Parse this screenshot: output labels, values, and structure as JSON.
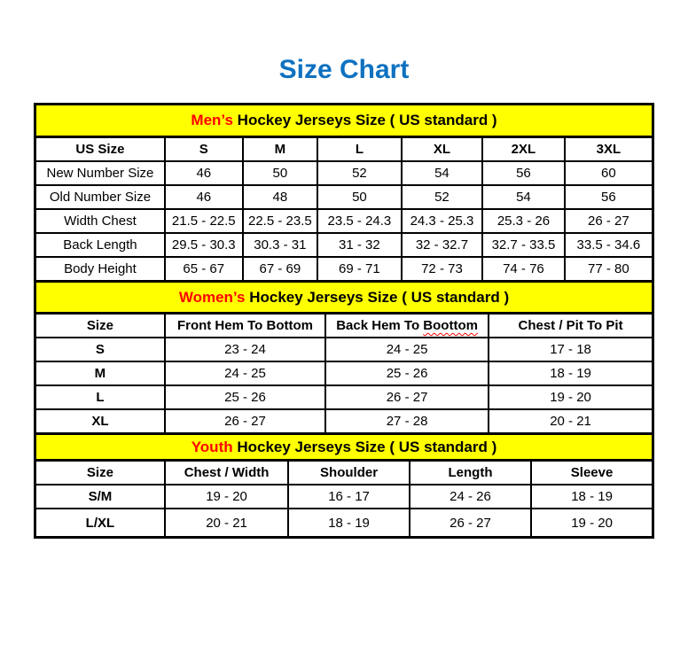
{
  "title": "Size Chart",
  "colors": {
    "title_blue": "#0E71C0",
    "band_yellow": "#FFFF00",
    "accent_red": "#FF0000",
    "border_black": "#000000",
    "background": "#FFFFFF"
  },
  "chart_data": [
    {
      "type": "table",
      "id": "mens",
      "caption": {
        "accent": "Men’s",
        "rest": " Hockey Jerseys Size ( US standard )"
      },
      "columns": [
        "US Size",
        "S",
        "M",
        "L",
        "XL",
        "2XL",
        "3XL"
      ],
      "row_label_bold": false,
      "rows": [
        [
          "New Number Size",
          "46",
          "50",
          "52",
          "54",
          "56",
          "60"
        ],
        [
          "Old Number Size",
          "46",
          "48",
          "50",
          "52",
          "54",
          "56"
        ],
        [
          "Width Chest",
          "21.5 - 22.5",
          "22.5 - 23.5",
          "23.5 - 24.3",
          "24.3 - 25.3",
          "25.3 - 26",
          "26 - 27"
        ],
        [
          "Back Length",
          "29.5 - 30.3",
          "30.3 - 31",
          "31 - 32",
          "32 - 32.7",
          "32.7 - 33.5",
          "33.5 - 34.6"
        ],
        [
          "Body Height",
          "65 - 67",
          "67 - 69",
          "69 - 71",
          "72 - 73",
          "74 - 76",
          "77 - 80"
        ]
      ]
    },
    {
      "type": "table",
      "id": "womens",
      "caption": {
        "accent": "Women’s",
        "rest": " Hockey Jerseys Size ( US standard )"
      },
      "columns": [
        "Size",
        "Front Hem To Bottom",
        {
          "text": "Back Hem To ",
          "underlined_word": "Boottom"
        },
        "Chest / Pit To Pit"
      ],
      "row_label_bold": true,
      "rows": [
        [
          "S",
          "23 - 24",
          "24 - 25",
          "17 - 18"
        ],
        [
          "M",
          "24 - 25",
          "25 - 26",
          "18 - 19"
        ],
        [
          "L",
          "25 - 26",
          "26 - 27",
          "19 - 20"
        ],
        [
          "XL",
          "26 - 27",
          "27 - 28",
          "20 - 21"
        ]
      ]
    },
    {
      "type": "table",
      "id": "youth",
      "caption": {
        "accent": "Youth",
        "rest": " Hockey Jerseys Size ( US standard )"
      },
      "columns": [
        "Size",
        "Chest / Width",
        "Shoulder",
        "Length",
        "Sleeve"
      ],
      "row_label_bold": true,
      "rows": [
        [
          "S/M",
          "19 - 20",
          "16 - 17",
          "24 - 26",
          "18 - 19"
        ],
        [
          "L/XL",
          "20 - 21",
          "18 - 19",
          "26 - 27",
          "19 - 20"
        ]
      ]
    }
  ]
}
